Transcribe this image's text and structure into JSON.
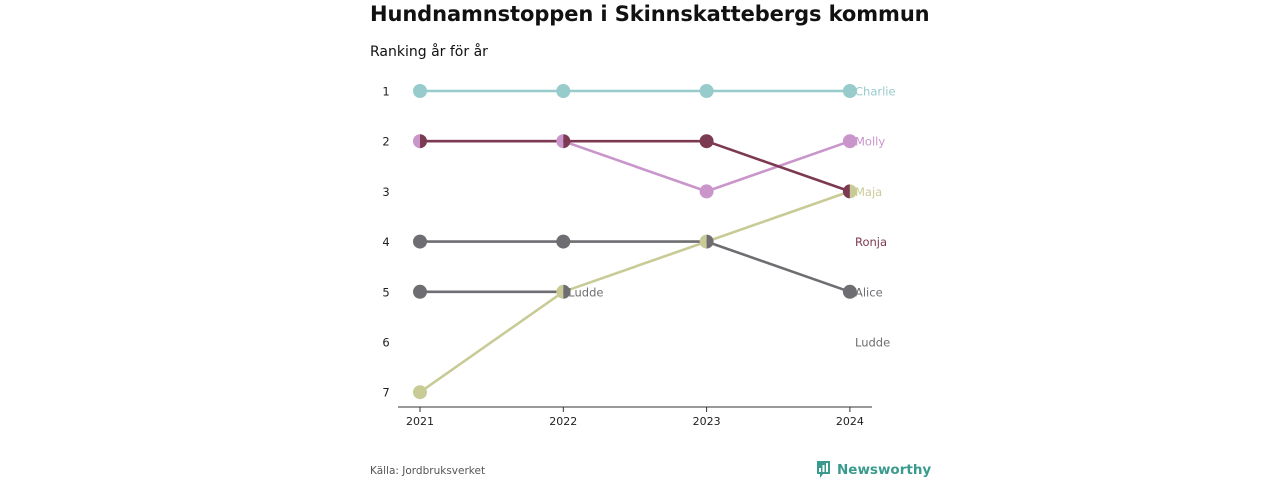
{
  "header": {
    "title": "Hundnamnstoppen i Skinnskattebergs kommun",
    "subtitle": "Ranking år för år"
  },
  "footer": {
    "source": "Källa: Jordbruksverket",
    "brand": "Newsworthy",
    "brand_icon": "bar-chart-speech-bubble-icon",
    "brand_color": "#3a9a8d"
  },
  "chart_data": {
    "type": "line",
    "subtype": "bump",
    "x": [
      "2021",
      "2022",
      "2023",
      "2024"
    ],
    "y_ticks": [
      "1",
      "2",
      "3",
      "4",
      "5",
      "6",
      "7"
    ],
    "ylim": [
      1,
      7
    ],
    "y_reversed": true,
    "grid": false,
    "series": [
      {
        "name": "Charlie",
        "color": "#97cbcc",
        "ranks": [
          1,
          1,
          1,
          1
        ]
      },
      {
        "name": "Molly",
        "color": "#c995ca",
        "ranks": [
          2,
          2,
          3,
          2
        ]
      },
      {
        "name": "Ronja",
        "color": "#7c3a52",
        "ranks": [
          2,
          2,
          2,
          3
        ]
      },
      {
        "name": "Maja",
        "color": "#c9cb97",
        "ranks": [
          7,
          5,
          4,
          3
        ]
      },
      {
        "name": "Alice",
        "color": "#6e6e72",
        "ranks": [
          4,
          4,
          4,
          5
        ]
      },
      {
        "name": "Ludde",
        "color": "#6e6e72",
        "ranks": [
          5,
          5,
          null,
          null
        ]
      }
    ],
    "end_labels": [
      {
        "text": "Charlie",
        "rank": 1,
        "color": "#97cbcc"
      },
      {
        "text": "Molly",
        "rank": 2,
        "color": "#c995ca"
      },
      {
        "text": "Maja",
        "rank": 3,
        "color": "#c9cb97"
      },
      {
        "text": "Ronja",
        "rank": 4,
        "color": "#7c3a52"
      },
      {
        "text": "Alice",
        "rank": 5,
        "color": "#6e6e72"
      },
      {
        "text": "Ludde",
        "rank": 6,
        "color": "#6e6e72"
      }
    ],
    "annotations": [
      {
        "text": "Ludde",
        "x": "2022",
        "rank": 5,
        "color": "#6e6e72"
      }
    ]
  }
}
